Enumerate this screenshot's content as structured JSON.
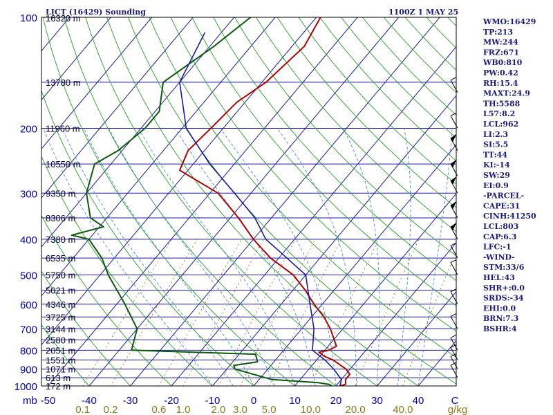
{
  "header": {
    "title": "LICT (16429) Sounding",
    "time": "1100Z  1 MAY 25"
  },
  "indices": [
    "WMO:16429",
    "TP:213",
    "MW:244",
    "FRZ:671",
    "WB0:810",
    "PW:0.42",
    "RH:15.4",
    "MAXT:24.9",
    "TH:5588",
    "L57:8.2",
    "LCL:962",
    "LI:2.3",
    "SI:5.5",
    "TT:44",
    "KI:-14",
    "SW:29",
    "EI:0.9",
    "-PARCEL-",
    "CAPE:31",
    "CINH:41250",
    "LCL:803",
    "CAP:6.3",
    "LFC:-1",
    "-WIND-",
    "STM:33/6",
    "HEL:43",
    "SHR+:0.0",
    "SRDS:-34",
    "EHI:0.0",
    "BRN:7.3",
    "BSHR:4"
  ],
  "colors": {
    "isobar": "#1a1aa0",
    "isotherm": "#1a1aa0",
    "dry_adiabat": "#22a022",
    "moist_adiabat": "#4a8ad0",
    "mixing_ratio": "#8a7a10",
    "temperature": "#b00000",
    "dewpoint": "#0b5a0b",
    "parcel": "#1a1aa0",
    "wind": "#000000"
  },
  "chart_data": {
    "type": "line",
    "title": "LICT (16429) Sounding",
    "plot_type": "skew-T log-P",
    "y_unit": "mb",
    "pressure_levels": [
      100,
      200,
      300,
      400,
      500,
      600,
      700,
      800,
      900,
      1000
    ],
    "pressure_labels": [
      "100",
      "200",
      "300",
      "400",
      "500",
      "600",
      "700",
      "800",
      "900",
      "1000"
    ],
    "corner_label": "mb",
    "temperature_ticks": [
      "-50",
      "-40",
      "-30",
      "-20",
      "-10",
      "0",
      "10",
      "20",
      "30",
      "40",
      "C"
    ],
    "temperature_tick_values": [
      -50,
      -40,
      -30,
      -20,
      -10,
      0,
      10,
      20,
      30,
      40
    ],
    "mixing_ratio_ticks": [
      "0.1",
      "0.2",
      "0.6",
      "1.0",
      "2.0",
      "3.0",
      "5.0",
      "10.0",
      "20.0",
      "40.0",
      "g/kg"
    ],
    "mixing_ratio_values": [
      0.1,
      0.2,
      0.6,
      1.0,
      2.0,
      3.0,
      5.0,
      10.0,
      20.0,
      40.0
    ],
    "height_levels": [
      {
        "p": 150,
        "label": "13780 m"
      },
      {
        "p": 200,
        "label": "11960 m"
      },
      {
        "p": 250,
        "label": "10550 m"
      },
      {
        "p": 300,
        "label": "9350 m"
      },
      {
        "p": 350,
        "label": "8306 m"
      },
      {
        "p": 400,
        "label": "7380 m"
      },
      {
        "p": 450,
        "label": "6535 m"
      },
      {
        "p": 500,
        "label": "5750 m"
      },
      {
        "p": 550,
        "label": "5021 m"
      },
      {
        "p": 600,
        "label": "4346 m"
      },
      {
        "p": 650,
        "label": "3725 m"
      },
      {
        "p": 700,
        "label": "3144 m"
      },
      {
        "p": 750,
        "label": "2580 m"
      },
      {
        "p": 800,
        "label": "2051 m"
      },
      {
        "p": 850,
        "label": "1551 m"
      },
      {
        "p": 900,
        "label": "1071 m"
      },
      {
        "p": 950,
        "label": "613 m"
      },
      {
        "p": 1000,
        "label": "172 m"
      }
    ],
    "top_height_label": "16320 m",
    "series": [
      {
        "key": "temperature",
        "points": [
          [
            100,
            -59
          ],
          [
            120,
            -57
          ],
          [
            150,
            -59
          ],
          [
            170,
            -62
          ],
          [
            200,
            -63
          ],
          [
            230,
            -64
          ],
          [
            260,
            -62
          ],
          [
            300,
            -48
          ],
          [
            350,
            -38
          ],
          [
            400,
            -30
          ],
          [
            450,
            -22
          ],
          [
            500,
            -13
          ],
          [
            550,
            -7
          ],
          [
            600,
            -2
          ],
          [
            650,
            3
          ],
          [
            700,
            7
          ],
          [
            780,
            12
          ],
          [
            800,
            11
          ],
          [
            810,
            9
          ],
          [
            830,
            11
          ],
          [
            850,
            14
          ],
          [
            900,
            19
          ],
          [
            930,
            21
          ],
          [
            960,
            21
          ],
          [
            990,
            22
          ],
          [
            1000,
            21
          ]
        ]
      },
      {
        "key": "dewpoint",
        "points": [
          [
            100,
            -76
          ],
          [
            120,
            -79
          ],
          [
            150,
            -84
          ],
          [
            180,
            -79
          ],
          [
            200,
            -79
          ],
          [
            230,
            -81
          ],
          [
            250,
            -84
          ],
          [
            300,
            -80
          ],
          [
            350,
            -74
          ],
          [
            370,
            -69
          ],
          [
            390,
            -75
          ],
          [
            400,
            -70
          ],
          [
            450,
            -63
          ],
          [
            500,
            -58
          ],
          [
            600,
            -48
          ],
          [
            700,
            -40
          ],
          [
            800,
            -37
          ],
          [
            820,
            -6
          ],
          [
            860,
            -4
          ],
          [
            880,
            -9
          ],
          [
            900,
            -8
          ],
          [
            960,
            3
          ],
          [
            980,
            15
          ],
          [
            990,
            18
          ],
          [
            1000,
            19
          ]
        ]
      },
      {
        "key": "parcel",
        "points": [
          [
            110,
            -84
          ],
          [
            150,
            -80
          ],
          [
            200,
            -69
          ],
          [
            250,
            -56
          ],
          [
            300,
            -44
          ],
          [
            350,
            -34
          ],
          [
            400,
            -27
          ],
          [
            450,
            -18
          ],
          [
            500,
            -10
          ],
          [
            600,
            -3
          ],
          [
            700,
            3
          ],
          [
            800,
            7
          ],
          [
            850,
            12
          ],
          [
            900,
            16
          ],
          [
            960,
            20
          ],
          [
            1000,
            21
          ]
        ]
      }
    ],
    "wind_levels": [
      160,
      200,
      230,
      270,
      300,
      350,
      400,
      450,
      500,
      600,
      700,
      800,
      850,
      900,
      950
    ]
  }
}
